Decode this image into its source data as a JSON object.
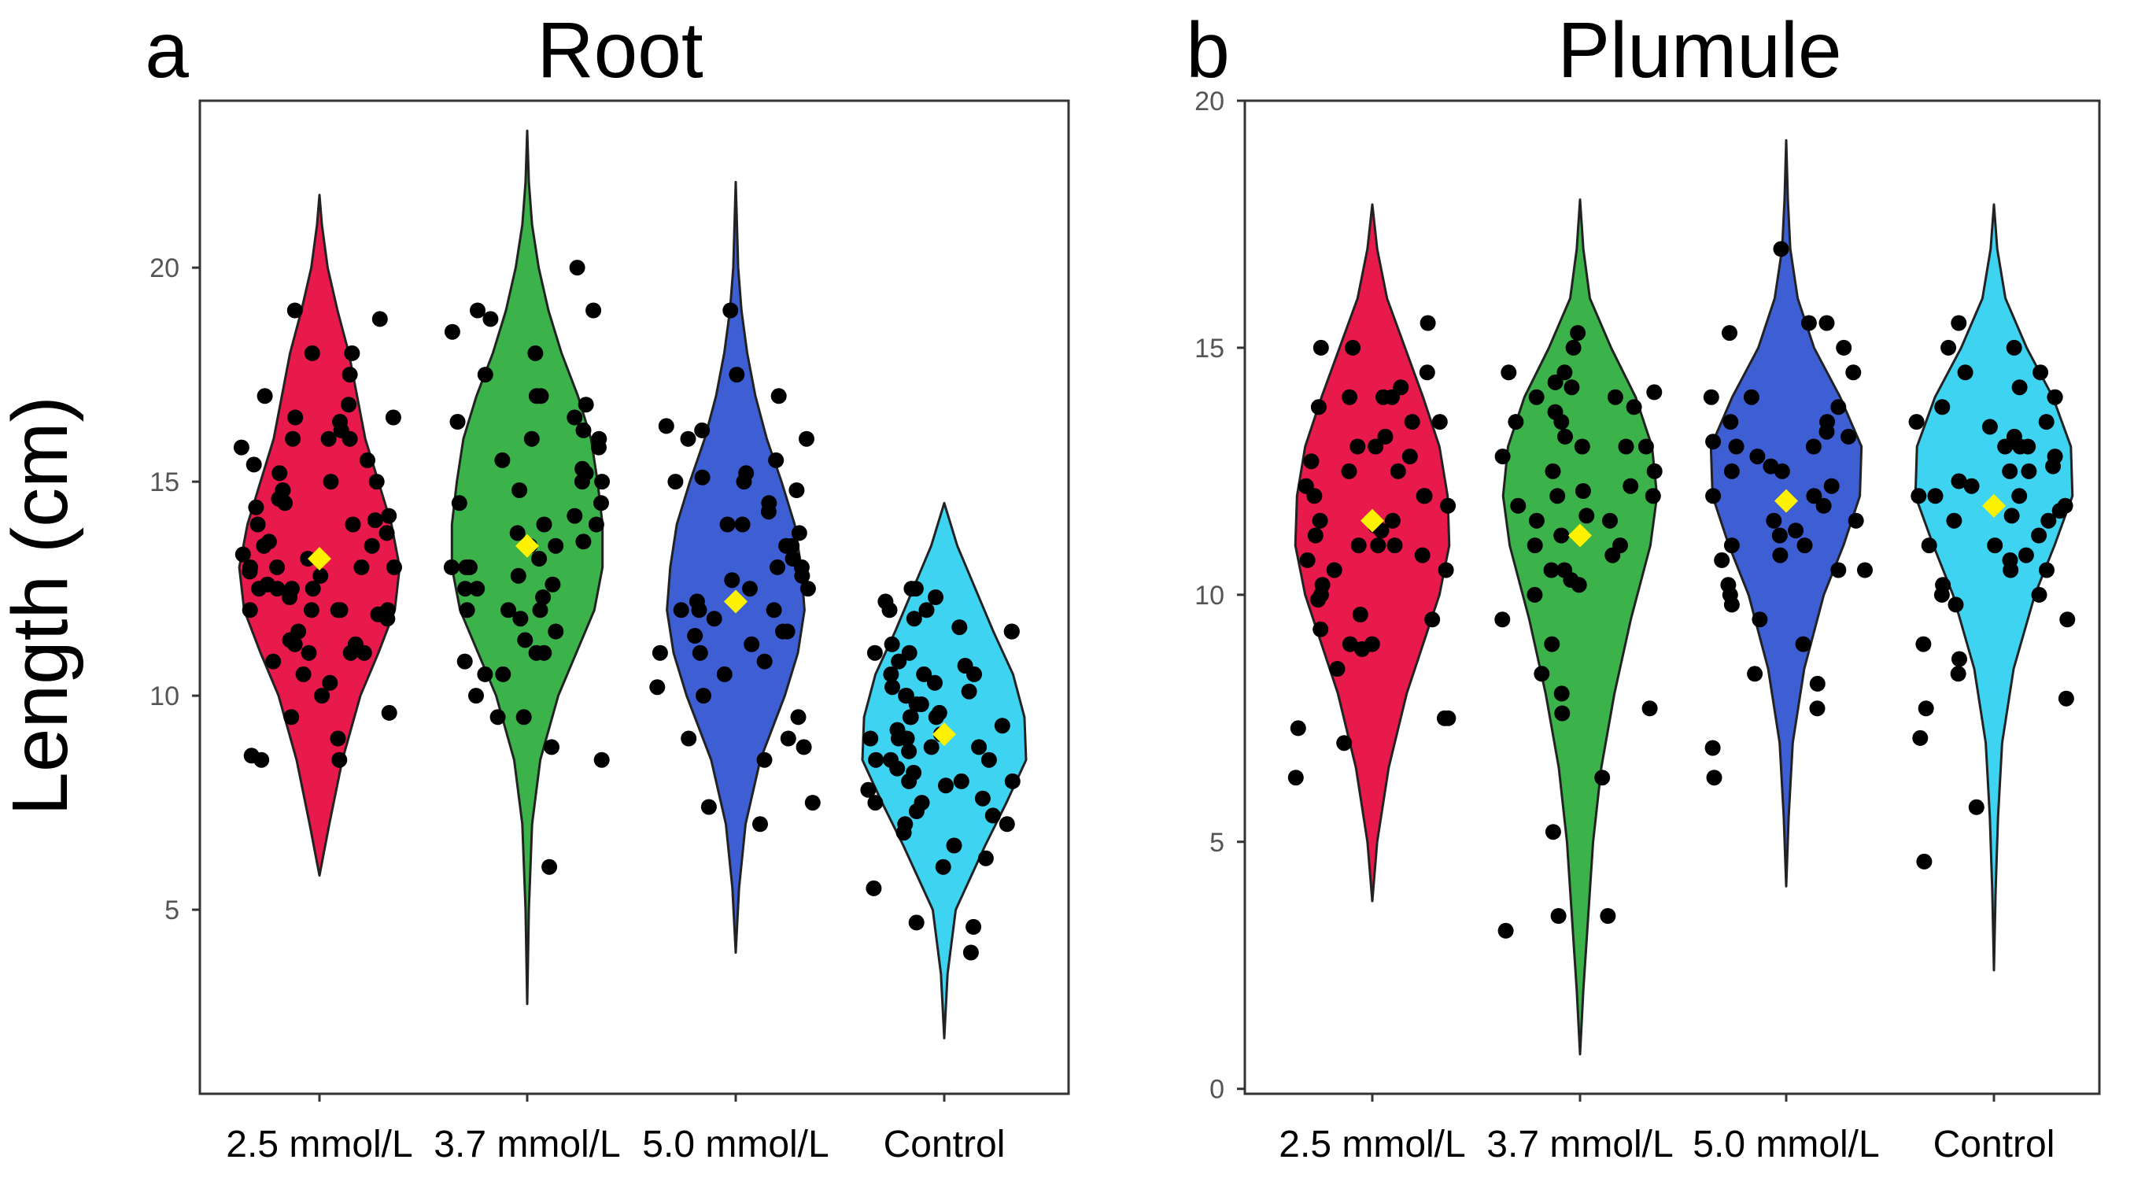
{
  "figure": {
    "ylabel": "Length (cm)",
    "colors": {
      "2.5 mmol/L": "#E8194B",
      "3.7 mmol/L": "#3BB34A",
      "5.0 mmol/L": "#3E5FD4",
      "Control": "#3FD3F2",
      "mean_marker": "#FFF200",
      "points": "#000000",
      "frame": "#333333"
    }
  },
  "chart_data": [
    {
      "type": "violin",
      "panel_letter": "a",
      "title": "Root",
      "xlabel": "",
      "ylabel": "Length (cm)",
      "categories": [
        "2.5 mmol/L",
        "3.7 mmol/L",
        "5.0 mmol/L",
        "Control"
      ],
      "ylim": [
        0.7,
        23.9
      ],
      "yticks": [
        5,
        10,
        15,
        20
      ],
      "grid": false,
      "means": [
        13.2,
        13.5,
        12.2,
        9.1
      ],
      "violins": [
        {
          "name": "2.5 mmol/L",
          "min": 5.8,
          "max": 21.7,
          "profile": [
            [
              5.8,
              0
            ],
            [
              7,
              0.12
            ],
            [
              8.5,
              0.28
            ],
            [
              10,
              0.5
            ],
            [
              11,
              0.72
            ],
            [
              12,
              0.92
            ],
            [
              13,
              0.98
            ],
            [
              14,
              0.88
            ],
            [
              15,
              0.72
            ],
            [
              16,
              0.56
            ],
            [
              17,
              0.46
            ],
            [
              18,
              0.36
            ],
            [
              19,
              0.22
            ],
            [
              20,
              0.1
            ],
            [
              21,
              0.03
            ],
            [
              21.7,
              0
            ]
          ]
        },
        {
          "name": "3.7 mmol/L",
          "min": 2.8,
          "max": 23.2,
          "profile": [
            [
              2.8,
              0
            ],
            [
              5,
              0.02
            ],
            [
              7,
              0.06
            ],
            [
              8.5,
              0.16
            ],
            [
              10,
              0.38
            ],
            [
              11,
              0.6
            ],
            [
              12,
              0.82
            ],
            [
              13,
              0.92
            ],
            [
              14,
              0.92
            ],
            [
              15,
              0.86
            ],
            [
              16,
              0.78
            ],
            [
              17,
              0.62
            ],
            [
              18,
              0.42
            ],
            [
              19,
              0.26
            ],
            [
              20,
              0.14
            ],
            [
              21,
              0.06
            ],
            [
              22,
              0.02
            ],
            [
              23.2,
              0
            ]
          ]
        },
        {
          "name": "5.0 mmol/L",
          "min": 4.0,
          "max": 22.0,
          "profile": [
            [
              4,
              0
            ],
            [
              5.5,
              0.04
            ],
            [
              7,
              0.12
            ],
            [
              8.5,
              0.3
            ],
            [
              10,
              0.6
            ],
            [
              11,
              0.76
            ],
            [
              12,
              0.84
            ],
            [
              13,
              0.8
            ],
            [
              14,
              0.72
            ],
            [
              15,
              0.56
            ],
            [
              16,
              0.38
            ],
            [
              17,
              0.24
            ],
            [
              18,
              0.14
            ],
            [
              19,
              0.07
            ],
            [
              20,
              0.03
            ],
            [
              22,
              0
            ]
          ]
        },
        {
          "name": "Control",
          "min": 2.0,
          "max": 14.5,
          "profile": [
            [
              2,
              0
            ],
            [
              3.5,
              0.04
            ],
            [
              5,
              0.14
            ],
            [
              6.5,
              0.5
            ],
            [
              7.5,
              0.76
            ],
            [
              8.5,
              1
            ],
            [
              9.5,
              0.98
            ],
            [
              10.5,
              0.84
            ],
            [
              11.5,
              0.6
            ],
            [
              12.5,
              0.38
            ],
            [
              13.5,
              0.16
            ],
            [
              14.5,
              0
            ]
          ]
        }
      ],
      "points": [
        {
          "name": "2.5 mmol/L",
          "values": [
            8.5,
            9.0,
            9.5,
            9.6,
            10.0,
            10.3,
            10.5,
            10.8,
            11.0,
            11.0,
            11.0,
            11.2,
            11.3,
            11.5,
            11.8,
            11.9,
            12.0,
            12.0,
            12.0,
            12.0,
            12.0,
            12.3,
            12.5,
            12.5,
            12.5,
            12.6,
            12.8,
            12.9,
            13.0,
            13.0,
            13.0,
            13.0,
            13.2,
            13.3,
            13.5,
            13.5,
            13.6,
            13.8,
            14.0,
            14.0,
            14.1,
            14.2,
            14.4,
            14.5,
            14.6,
            14.8,
            15.0,
            15.0,
            15.2,
            15.4,
            15.5,
            15.8,
            16.0,
            16.0,
            16.0,
            16.2,
            16.5,
            16.5,
            16.8,
            17.0,
            17.5,
            18.0,
            18.0,
            18.8,
            19.0,
            8.5,
            8.6,
            11.2,
            12.5,
            16.4
          ]
        },
        {
          "name": "3.7 mmol/L",
          "values": [
            6.0,
            8.5,
            8.8,
            9.5,
            10.0,
            10.5,
            10.5,
            10.8,
            11.0,
            11.0,
            11.3,
            11.5,
            11.8,
            12.0,
            12.0,
            12.0,
            12.3,
            12.5,
            12.5,
            12.8,
            13.0,
            13.0,
            13.0,
            13.0,
            13.2,
            13.5,
            13.5,
            13.8,
            14.0,
            14.0,
            14.2,
            14.5,
            14.5,
            14.8,
            15.0,
            15.0,
            15.2,
            15.5,
            15.8,
            16.0,
            16.0,
            16.2,
            16.5,
            16.8,
            17.0,
            17.5,
            18.0,
            18.5,
            18.8,
            19.0,
            19.0,
            20.0,
            17.0,
            9.5,
            12.6,
            15.3,
            16.4,
            13.6
          ]
        },
        {
          "name": "5.0 mmol/L",
          "values": [
            7.0,
            7.4,
            7.5,
            8.5,
            9.0,
            9.5,
            10.0,
            10.2,
            10.5,
            10.8,
            11.0,
            11.0,
            11.2,
            11.5,
            11.5,
            11.8,
            12.0,
            12.0,
            12.0,
            12.2,
            12.5,
            12.5,
            12.8,
            13.0,
            13.0,
            13.2,
            13.5,
            13.5,
            13.8,
            14.0,
            14.0,
            14.3,
            14.5,
            14.8,
            15.0,
            15.0,
            15.2,
            15.5,
            16.0,
            16.0,
            16.3,
            17.0,
            17.5,
            19.0,
            8.8,
            9.0,
            11.4,
            12.7,
            15.1,
            16.2
          ]
        },
        {
          "name": "Control",
          "values": [
            4.0,
            4.6,
            4.7,
            5.5,
            6.0,
            6.5,
            6.8,
            7.0,
            7.0,
            7.2,
            7.5,
            7.5,
            7.6,
            7.8,
            8.0,
            8.0,
            8.0,
            8.2,
            8.3,
            8.5,
            8.5,
            8.5,
            8.8,
            8.8,
            9.0,
            9.0,
            9.0,
            9.2,
            9.3,
            9.5,
            9.5,
            9.5,
            9.8,
            9.8,
            10.0,
            10.0,
            10.0,
            10.2,
            10.3,
            10.5,
            10.5,
            10.5,
            10.8,
            11.0,
            11.0,
            11.2,
            11.5,
            11.5,
            11.8,
            12.0,
            12.0,
            12.3,
            12.5,
            12.5,
            7.3,
            8.7,
            9.1,
            10.7,
            11.6,
            6.2,
            7.9,
            9.6,
            10.1,
            12.2
          ]
        }
      ]
    },
    {
      "type": "violin",
      "panel_letter": "b",
      "title": "Plumule",
      "xlabel": "",
      "ylabel": "",
      "categories": [
        "2.5 mmol/L",
        "3.7 mmol/L",
        "5.0 mmol/L",
        "Control"
      ],
      "ylim": [
        -0.1,
        20.0
      ],
      "yticks": [
        0,
        5,
        10,
        15,
        20
      ],
      "grid": false,
      "means": [
        11.5,
        11.2,
        11.9,
        11.8
      ],
      "violins": [
        {
          "name": "2.5 mmol/L",
          "min": 3.8,
          "max": 17.9,
          "profile": [
            [
              3.8,
              0
            ],
            [
              5,
              0.06
            ],
            [
              6.5,
              0.2
            ],
            [
              8,
              0.42
            ],
            [
              9,
              0.62
            ],
            [
              10,
              0.82
            ],
            [
              11,
              0.94
            ],
            [
              12,
              0.92
            ],
            [
              13,
              0.82
            ],
            [
              14,
              0.62
            ],
            [
              15,
              0.4
            ],
            [
              16,
              0.18
            ],
            [
              17,
              0.06
            ],
            [
              17.9,
              0
            ]
          ]
        },
        {
          "name": "3.7 mmol/L",
          "min": 0.7,
          "max": 18.0,
          "profile": [
            [
              0.7,
              0
            ],
            [
              2,
              0.04
            ],
            [
              3.5,
              0.1
            ],
            [
              5,
              0.16
            ],
            [
              6.5,
              0.26
            ],
            [
              8,
              0.42
            ],
            [
              9.5,
              0.62
            ],
            [
              11,
              0.86
            ],
            [
              12,
              0.94
            ],
            [
              13,
              0.88
            ],
            [
              14,
              0.68
            ],
            [
              15,
              0.38
            ],
            [
              16,
              0.12
            ],
            [
              17,
              0.04
            ],
            [
              18,
              0
            ]
          ]
        },
        {
          "name": "5.0 mmol/L",
          "min": 4.1,
          "max": 19.2,
          "profile": [
            [
              4.1,
              0
            ],
            [
              5.5,
              0.03
            ],
            [
              7,
              0.08
            ],
            [
              8.5,
              0.22
            ],
            [
              10,
              0.46
            ],
            [
              11,
              0.7
            ],
            [
              12,
              0.9
            ],
            [
              13,
              0.92
            ],
            [
              14,
              0.66
            ],
            [
              15,
              0.34
            ],
            [
              16,
              0.14
            ],
            [
              17,
              0.05
            ],
            [
              18,
              0.02
            ],
            [
              19.2,
              0
            ]
          ]
        },
        {
          "name": "Control",
          "min": 2.4,
          "max": 17.9,
          "profile": [
            [
              2.4,
              0
            ],
            [
              4,
              0.02
            ],
            [
              5.5,
              0.05
            ],
            [
              7,
              0.1
            ],
            [
              8.5,
              0.24
            ],
            [
              10,
              0.5
            ],
            [
              11,
              0.74
            ],
            [
              12,
              0.96
            ],
            [
              13,
              0.94
            ],
            [
              14,
              0.72
            ],
            [
              15,
              0.4
            ],
            [
              16,
              0.14
            ],
            [
              17,
              0.04
            ],
            [
              17.9,
              0
            ]
          ]
        }
      ],
      "points": [
        {
          "name": "2.5 mmol/L",
          "values": [
            6.3,
            7.0,
            7.3,
            7.5,
            7.5,
            8.5,
            8.9,
            9.0,
            9.0,
            9.5,
            9.6,
            9.9,
            10.0,
            10.2,
            10.5,
            10.5,
            10.7,
            10.8,
            11.0,
            11.0,
            11.0,
            11.2,
            11.3,
            11.5,
            11.5,
            11.8,
            12.0,
            12.0,
            12.0,
            12.2,
            12.5,
            12.5,
            12.8,
            13.0,
            13.0,
            13.2,
            13.5,
            13.5,
            13.8,
            14.0,
            14.0,
            14.0,
            14.2,
            14.5,
            15.0,
            15.0,
            15.5,
            11.4,
            12.7,
            9.3
          ]
        },
        {
          "name": "3.7 mmol/L",
          "values": [
            3.2,
            3.5,
            3.5,
            5.2,
            6.3,
            7.7,
            8.0,
            8.4,
            9.0,
            9.5,
            10.0,
            10.2,
            10.5,
            10.5,
            10.8,
            11.0,
            11.0,
            11.2,
            11.5,
            11.5,
            11.8,
            12.0,
            12.0,
            12.2,
            12.5,
            12.5,
            12.8,
            13.0,
            13.0,
            13.0,
            13.2,
            13.5,
            13.5,
            13.8,
            14.0,
            14.0,
            14.2,
            14.3,
            14.5,
            14.5,
            15.0,
            15.3,
            7.6,
            10.3,
            12.1,
            13.7,
            11.6,
            14.1
          ]
        },
        {
          "name": "5.0 mmol/L",
          "values": [
            6.3,
            6.9,
            7.7,
            8.2,
            8.4,
            9.0,
            9.5,
            9.8,
            10.0,
            10.2,
            10.5,
            10.5,
            10.8,
            11.0,
            11.0,
            11.2,
            11.5,
            11.5,
            11.8,
            12.0,
            12.0,
            12.2,
            12.5,
            12.5,
            12.8,
            13.0,
            13.0,
            13.2,
            13.3,
            13.5,
            13.5,
            13.8,
            14.0,
            14.0,
            14.5,
            15.0,
            15.3,
            15.5,
            15.5,
            17.0,
            11.3,
            12.6,
            10.7,
            13.1
          ]
        },
        {
          "name": "Control",
          "values": [
            4.6,
            5.7,
            7.1,
            7.7,
            7.9,
            8.4,
            8.7,
            9.0,
            9.5,
            9.8,
            10.0,
            10.0,
            10.5,
            10.5,
            10.7,
            10.8,
            11.0,
            11.0,
            11.2,
            11.5,
            11.5,
            11.6,
            11.8,
            12.0,
            12.0,
            12.0,
            12.2,
            12.3,
            12.5,
            12.5,
            12.8,
            13.0,
            13.0,
            13.0,
            13.2,
            13.5,
            13.5,
            13.8,
            14.0,
            14.0,
            14.2,
            14.5,
            14.5,
            15.0,
            15.0,
            15.5,
            11.7,
            12.6,
            10.2,
            13.4
          ]
        }
      ]
    }
  ]
}
